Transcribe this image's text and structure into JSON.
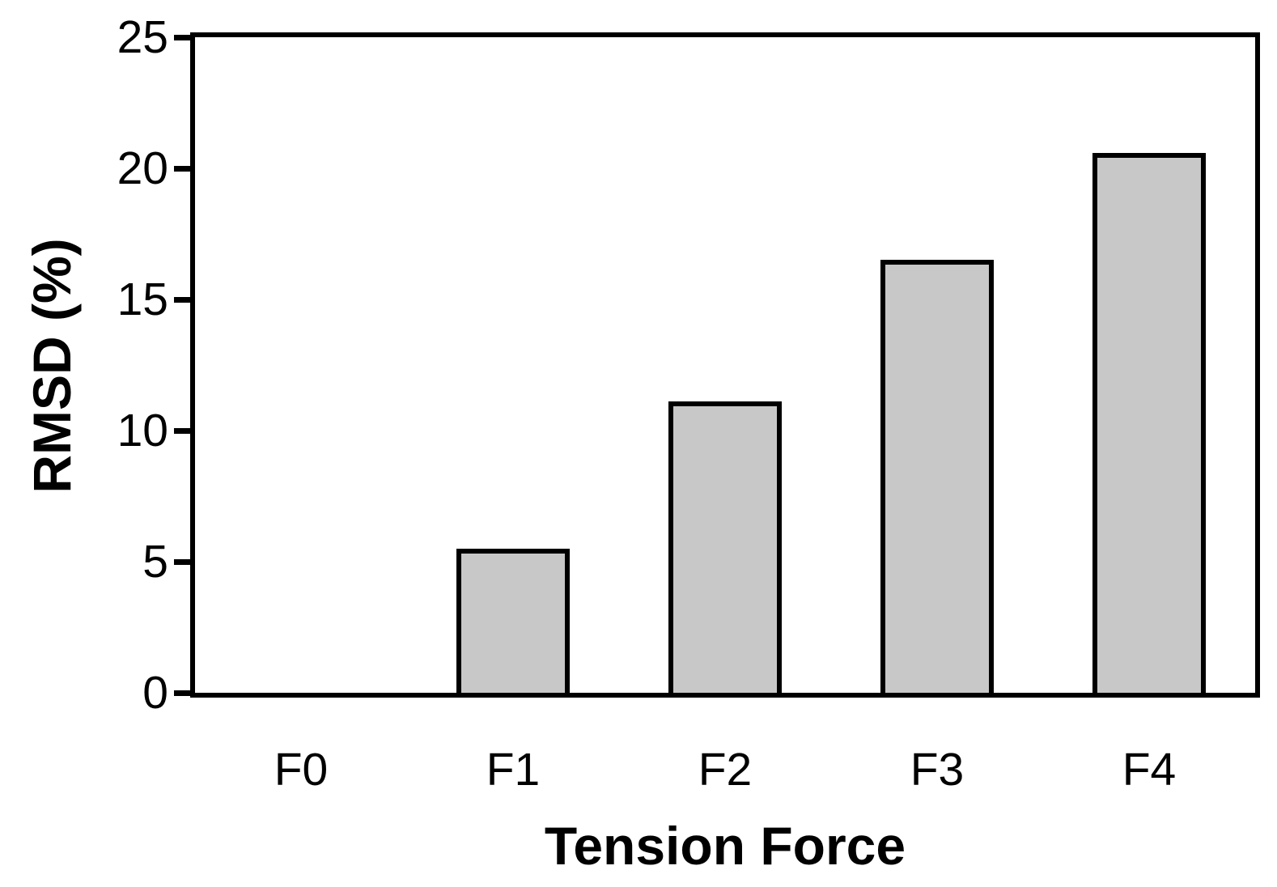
{
  "figure": {
    "background": "#ffffff"
  },
  "chart_data": {
    "type": "bar",
    "title": "",
    "xlabel": "Tension Force",
    "ylabel": "RMSD (%)",
    "categories": [
      "F0",
      "F1",
      "F2",
      "F3",
      "F4"
    ],
    "values": [
      0,
      5.5,
      11.1,
      16.5,
      20.6
    ],
    "ylim": [
      0,
      25
    ],
    "yticks": [
      0,
      5,
      10,
      15,
      20,
      25
    ],
    "grid": false,
    "legend": "none",
    "bar_fill": "#c8c8c8",
    "bar_border": "#000000",
    "axis_color": "#000000",
    "text_color": "#000000"
  }
}
